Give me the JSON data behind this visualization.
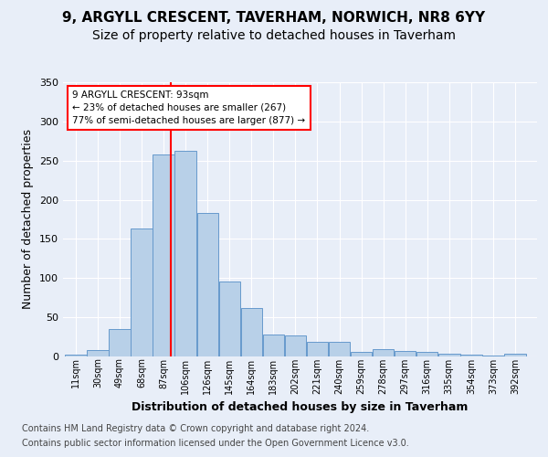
{
  "title1": "9, ARGYLL CRESCENT, TAVERHAM, NORWICH, NR8 6YY",
  "title2": "Size of property relative to detached houses in Taverham",
  "xlabel": "Distribution of detached houses by size in Taverham",
  "ylabel": "Number of detached properties",
  "categories": [
    "11sqm",
    "30sqm",
    "49sqm",
    "68sqm",
    "87sqm",
    "106sqm",
    "126sqm",
    "145sqm",
    "164sqm",
    "183sqm",
    "202sqm",
    "221sqm",
    "240sqm",
    "259sqm",
    "278sqm",
    "297sqm",
    "316sqm",
    "335sqm",
    "354sqm",
    "373sqm",
    "392sqm"
  ],
  "values": [
    2,
    8,
    35,
    163,
    258,
    262,
    183,
    96,
    62,
    28,
    27,
    19,
    19,
    6,
    9,
    7,
    6,
    4,
    2,
    1,
    3
  ],
  "bar_color": "#b8d0e8",
  "bar_edge_color": "#6699cc",
  "vline_color": "red",
  "ylim": [
    0,
    350
  ],
  "yticks": [
    0,
    50,
    100,
    150,
    200,
    250,
    300,
    350
  ],
  "annotation_line1": "9 ARGYLL CRESCENT: 93sqm",
  "annotation_line2": "← 23% of detached houses are smaller (267)",
  "annotation_line3": "77% of semi-detached houses are larger (877) →",
  "annotation_box_color": "white",
  "annotation_box_edge": "red",
  "footer1": "Contains HM Land Registry data © Crown copyright and database right 2024.",
  "footer2": "Contains public sector information licensed under the Open Government Licence v3.0.",
  "bg_color": "#e8eef8",
  "plot_bg_color": "#e8eef8",
  "grid_color": "white",
  "title1_fontsize": 11,
  "title2_fontsize": 10,
  "xlabel_fontsize": 9,
  "ylabel_fontsize": 9,
  "footer_fontsize": 7
}
